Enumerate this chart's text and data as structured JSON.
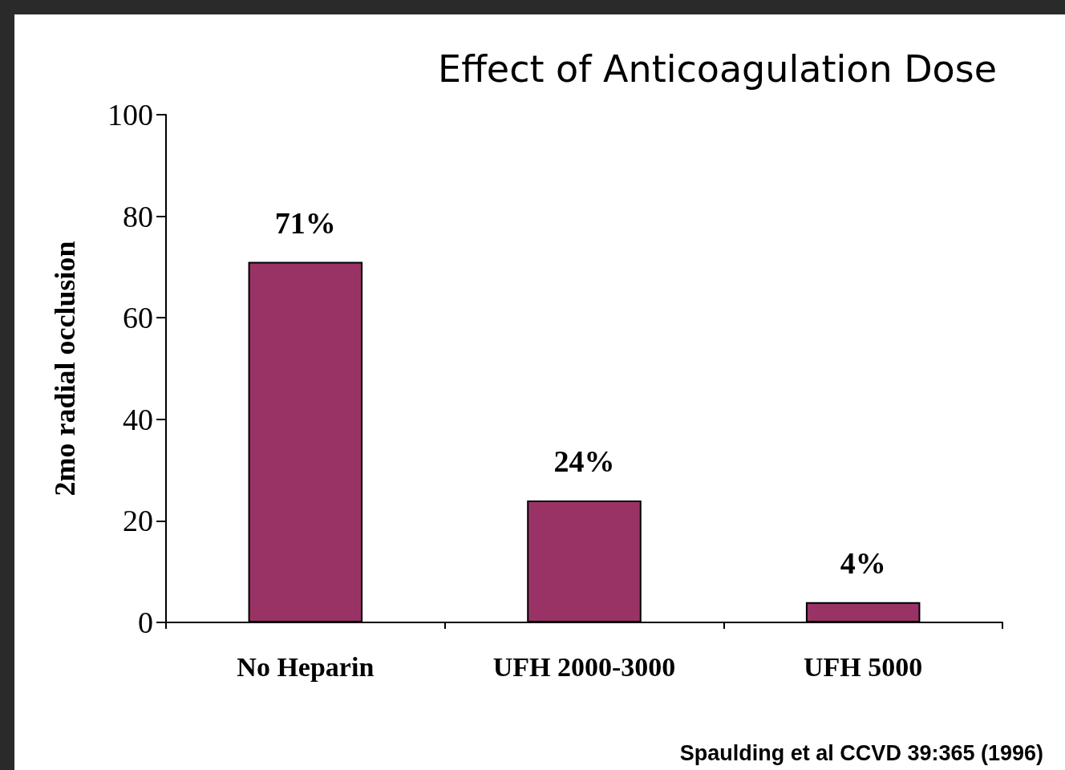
{
  "chart_data": {
    "type": "bar",
    "title": "Effect of Anticoagulation Dose",
    "ylabel": "2mo radial occlusion",
    "categories": [
      "No Heparin",
      "UFH 2000-3000",
      "UFH 5000"
    ],
    "values": [
      71,
      24,
      4
    ],
    "value_labels": [
      "71%",
      "24%",
      "4%"
    ],
    "color": "#993366",
    "ylim": [
      0,
      100
    ],
    "yticks": [
      0,
      20,
      40,
      60,
      80,
      100
    ],
    "grid": false,
    "annotations": [
      "Spaulding et al CCVD 39:365 (1996)"
    ]
  }
}
